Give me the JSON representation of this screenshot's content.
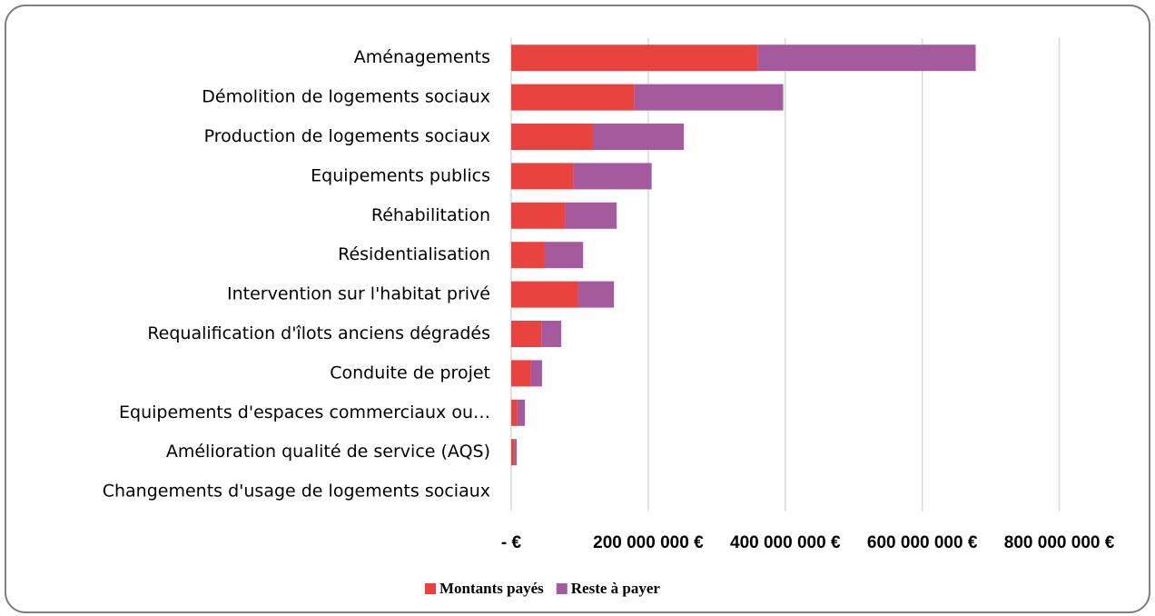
{
  "chart_data": {
    "type": "stacked-barh",
    "categories": [
      "Aménagements",
      "Démolition de logements sociaux",
      "Production de logements sociaux",
      "Equipements publics",
      "Réhabilitation",
      "Résidentialisation",
      "Intervention sur l'habitat privé",
      "Requalification d'îlots anciens dégradés",
      "Conduite de projet",
      "Equipements d'espaces commerciaux ou…",
      "Amélioration qualité de service (AQS)",
      "Changements d'usage de logements sociaux"
    ],
    "series": [
      {
        "name": "Montants payés",
        "color": "#e8433f",
        "values": [
          360000000,
          180000000,
          120000000,
          91000000,
          79000000,
          49000000,
          98000000,
          44000000,
          29000000,
          9000000,
          5000000,
          0
        ]
      },
      {
        "name": "Reste à payer",
        "color": "#a55a9e",
        "values": [
          318000000,
          217000000,
          132000000,
          114000000,
          75000000,
          56000000,
          52000000,
          29000000,
          16000000,
          11000000,
          3000000,
          0
        ]
      }
    ],
    "xlim": [
      0,
      900000000
    ],
    "xticks": [
      {
        "value": 0,
        "label": "- €"
      },
      {
        "value": 200000000,
        "label": "200 000 000 €"
      },
      {
        "value": 400000000,
        "label": "400 000 000 €"
      },
      {
        "value": 600000000,
        "label": "600 000 000 €"
      },
      {
        "value": 800000000,
        "label": "800 000 000 €"
      }
    ],
    "grid": true,
    "legend": "bottom"
  }
}
